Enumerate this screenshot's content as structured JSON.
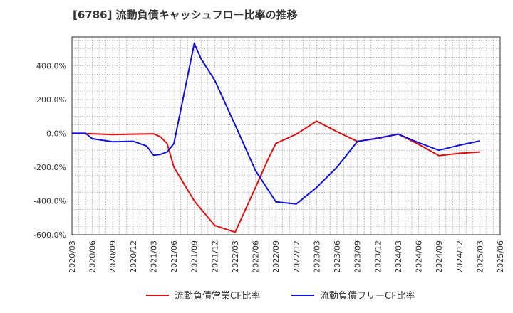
{
  "title": "[6786]  流動負債キャッシュフロー比率の推移",
  "chart_data": {
    "type": "line",
    "title": "[6786]  流動負債キャッシュフロー比率の推移",
    "xlabel": "",
    "ylabel": "",
    "ylim": [
      -600,
      570
    ],
    "yticks": [
      400,
      200,
      0,
      -200,
      -400,
      -600
    ],
    "ytick_labels": [
      "400.0%",
      "200.0%",
      "0.0%",
      "-200.0%",
      "-400.0%",
      "-600.0%"
    ],
    "x_range": [
      "2020/03",
      "2025/06"
    ],
    "x_tick_labels": [
      "2020/03",
      "2020/06",
      "2020/09",
      "2020/12",
      "2021/03",
      "2021/06",
      "2021/09",
      "2021/12",
      "2022/03",
      "2022/06",
      "2022/09",
      "2022/12",
      "2023/03",
      "2023/06",
      "2023/09",
      "2023/12",
      "2024/03",
      "2024/06",
      "2024/09",
      "2024/12",
      "2025/03",
      "2025/06"
    ],
    "grid": true,
    "legend_position": "bottom",
    "series": [
      {
        "name": "流動負債営業CF比率",
        "color": "#dd1111",
        "points": [
          [
            "2020/03",
            0
          ],
          [
            "2020/06",
            -3
          ],
          [
            "2020/09",
            -8
          ],
          [
            "2020/12",
            -5
          ],
          [
            "2021/03",
            -3
          ],
          [
            "2021/04",
            -20
          ],
          [
            "2021/05",
            -60
          ],
          [
            "2021/06",
            -200
          ],
          [
            "2021/09",
            -400
          ],
          [
            "2021/12",
            -545
          ],
          [
            "2022/03",
            -585
          ],
          [
            "2022/06",
            -320
          ],
          [
            "2022/08",
            -140
          ],
          [
            "2022/09",
            -60
          ],
          [
            "2022/12",
            -5
          ],
          [
            "2023/03",
            72
          ],
          [
            "2023/06",
            10
          ],
          [
            "2023/09",
            -48
          ],
          [
            "2023/12",
            -30
          ],
          [
            "2024/03",
            -5
          ],
          [
            "2024/06",
            -65
          ],
          [
            "2024/09",
            -132
          ],
          [
            "2024/12",
            -118
          ],
          [
            "2025/03",
            -110
          ]
        ]
      },
      {
        "name": "流動負債フリーCF比率",
        "color": "#1111dd",
        "points": [
          [
            "2020/03",
            0
          ],
          [
            "2020/05",
            0
          ],
          [
            "2020/06",
            -32
          ],
          [
            "2020/09",
            -50
          ],
          [
            "2020/12",
            -47
          ],
          [
            "2021/02",
            -75
          ],
          [
            "2021/03",
            -130
          ],
          [
            "2021/04",
            -125
          ],
          [
            "2021/05",
            -110
          ],
          [
            "2021/06",
            -60
          ],
          [
            "2021/09",
            532
          ],
          [
            "2021/10",
            440
          ],
          [
            "2021/12",
            315
          ],
          [
            "2022/03",
            50
          ],
          [
            "2022/06",
            -220
          ],
          [
            "2022/09",
            -405
          ],
          [
            "2022/12",
            -418
          ],
          [
            "2023/03",
            -320
          ],
          [
            "2023/06",
            -200
          ],
          [
            "2023/09",
            -48
          ],
          [
            "2023/12",
            -28
          ],
          [
            "2024/03",
            -5
          ],
          [
            "2024/06",
            -55
          ],
          [
            "2024/09",
            -100
          ],
          [
            "2024/12",
            -70
          ],
          [
            "2025/03",
            -45
          ]
        ]
      }
    ]
  }
}
